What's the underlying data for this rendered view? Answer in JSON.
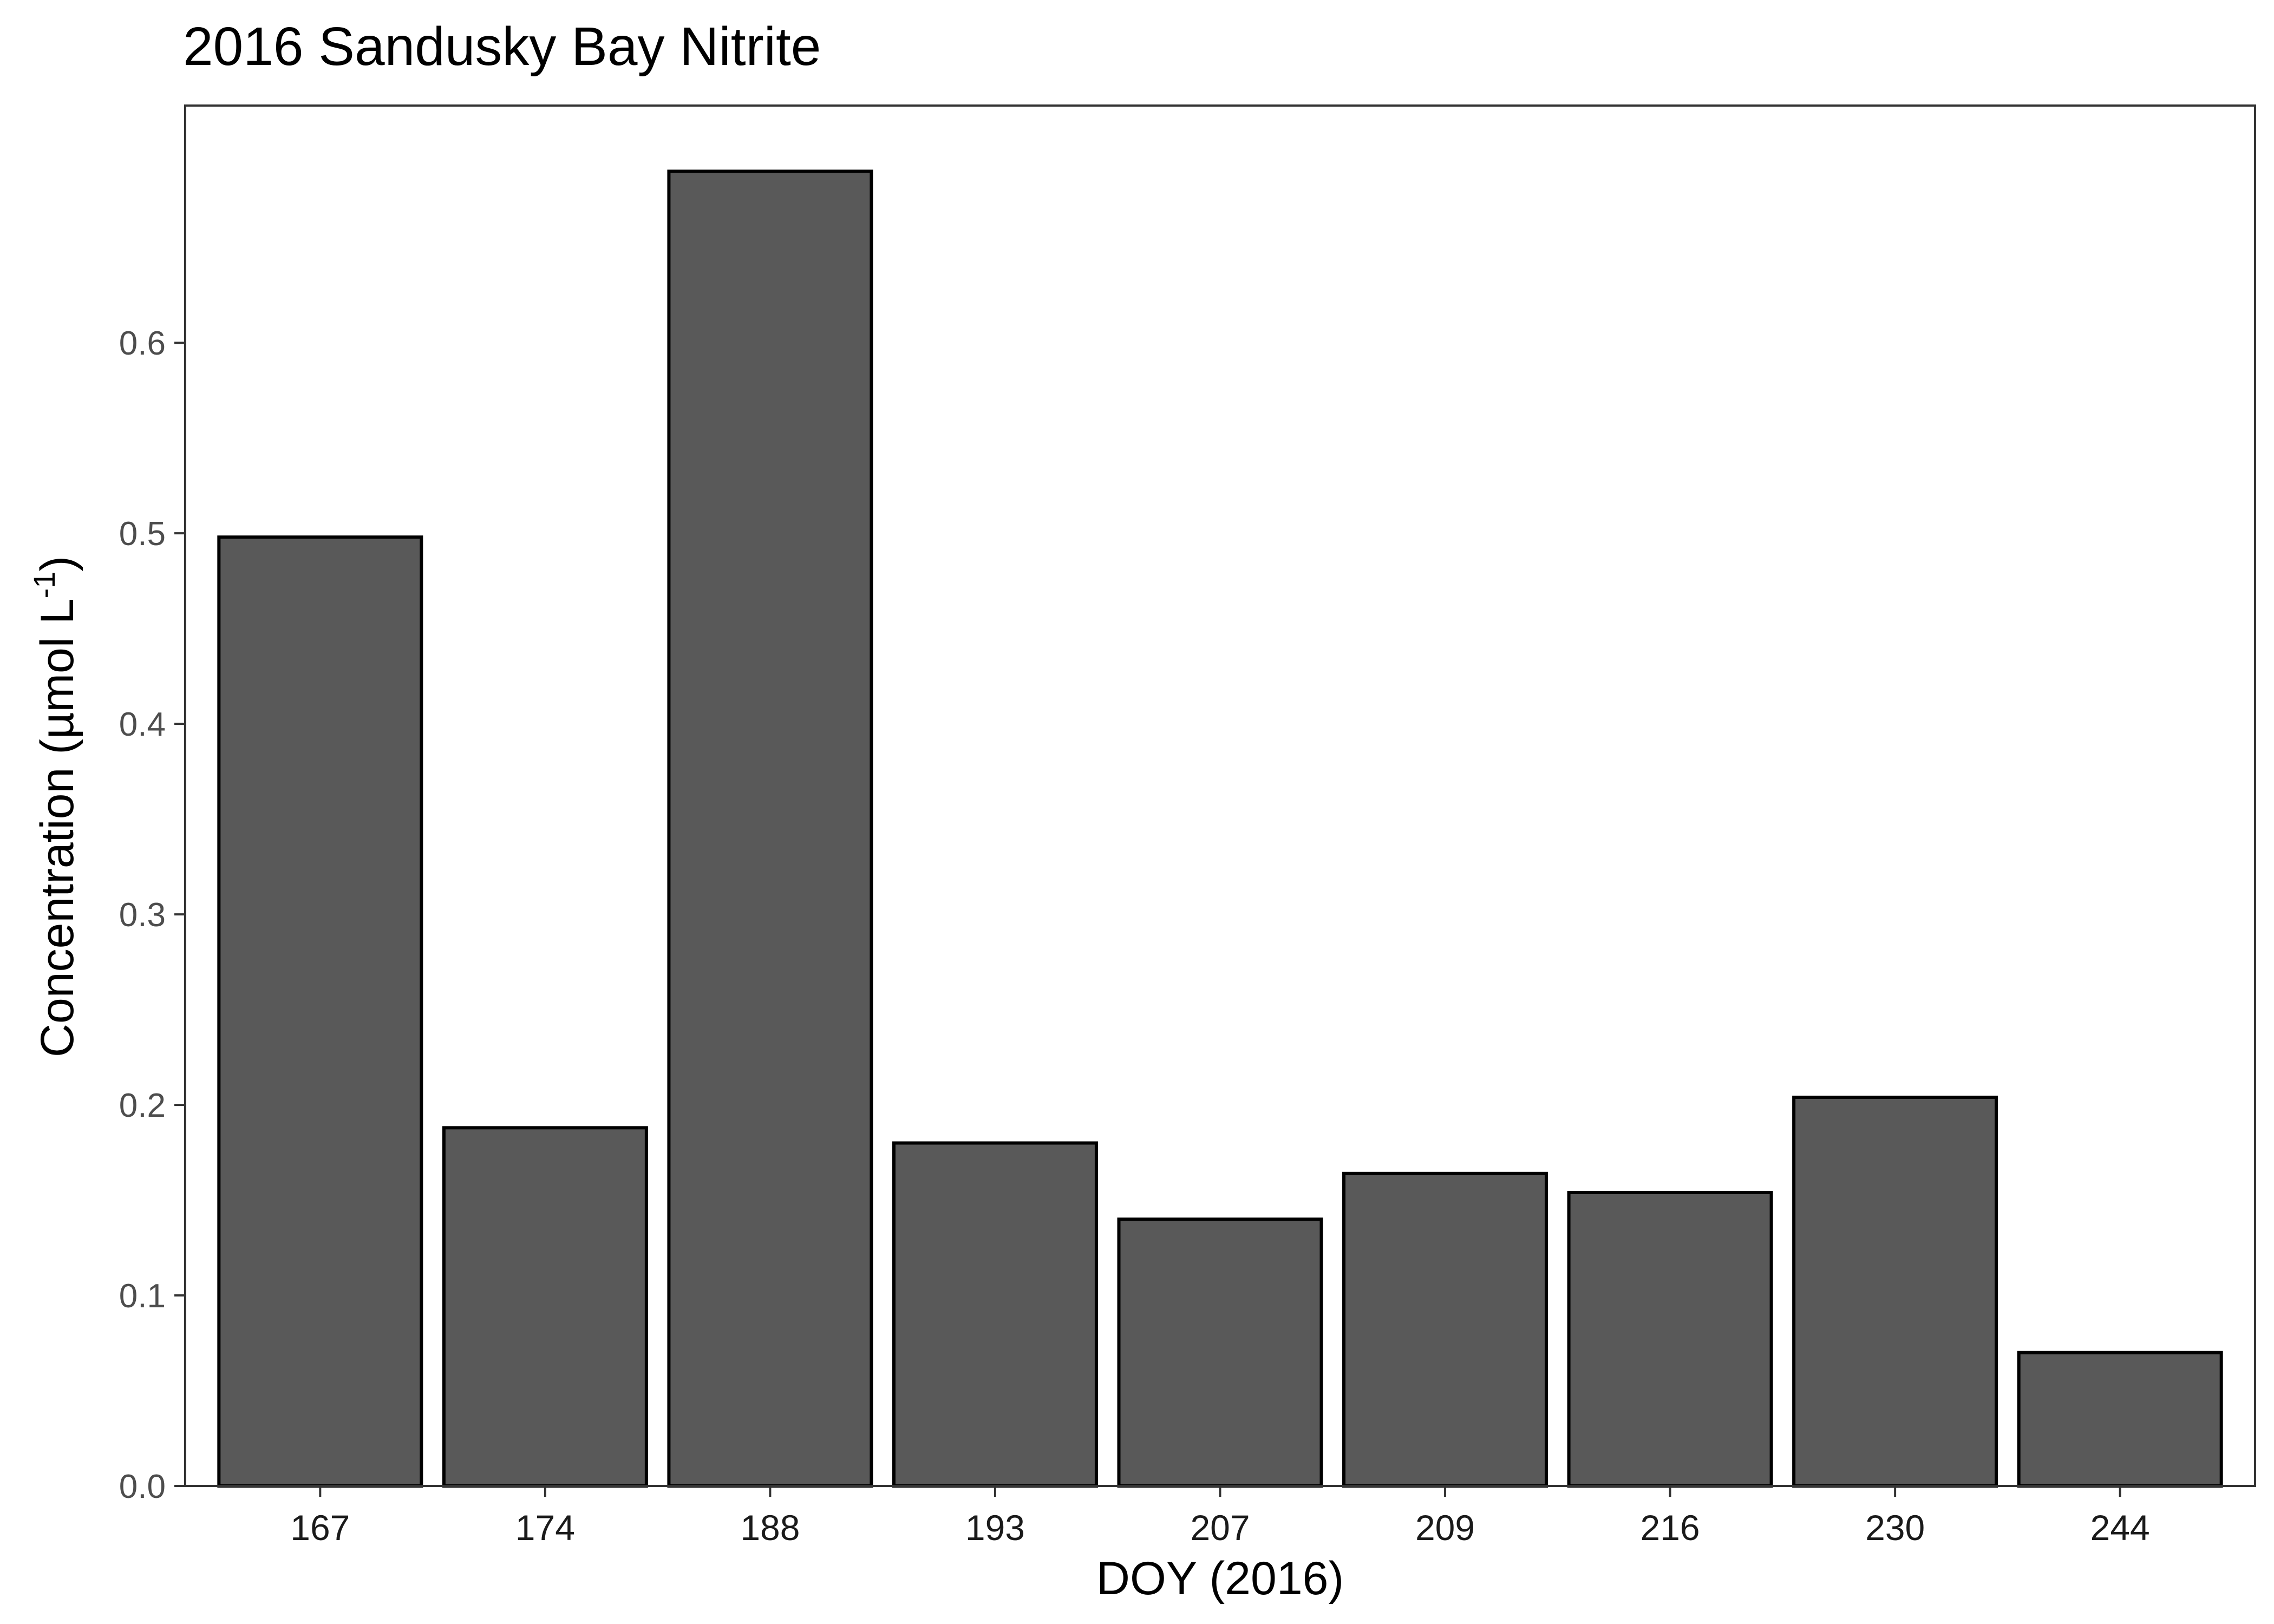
{
  "chart_data": {
    "type": "bar",
    "title": "2016 Sandusky Bay Nitrite",
    "xlabel": "DOY (2016)",
    "ylabel": {
      "main": "Concentration (µmol L",
      "superscript": "-1",
      "close": ")"
    },
    "categories": [
      "167",
      "174",
      "188",
      "193",
      "207",
      "209",
      "216",
      "230",
      "244"
    ],
    "values": [
      0.498,
      0.188,
      0.69,
      0.18,
      0.14,
      0.164,
      0.154,
      0.204,
      0.07
    ],
    "ylim": [
      0,
      0.69
    ],
    "yticks": [
      "0.0",
      "0.1",
      "0.2",
      "0.3",
      "0.4",
      "0.5",
      "0.6"
    ],
    "grid": false,
    "legend": "none",
    "colors": {
      "bar_fill": "#595959",
      "bar_stroke": "#000000",
      "panel_border": "#333333",
      "tick_text": "#4d4d4d"
    }
  }
}
